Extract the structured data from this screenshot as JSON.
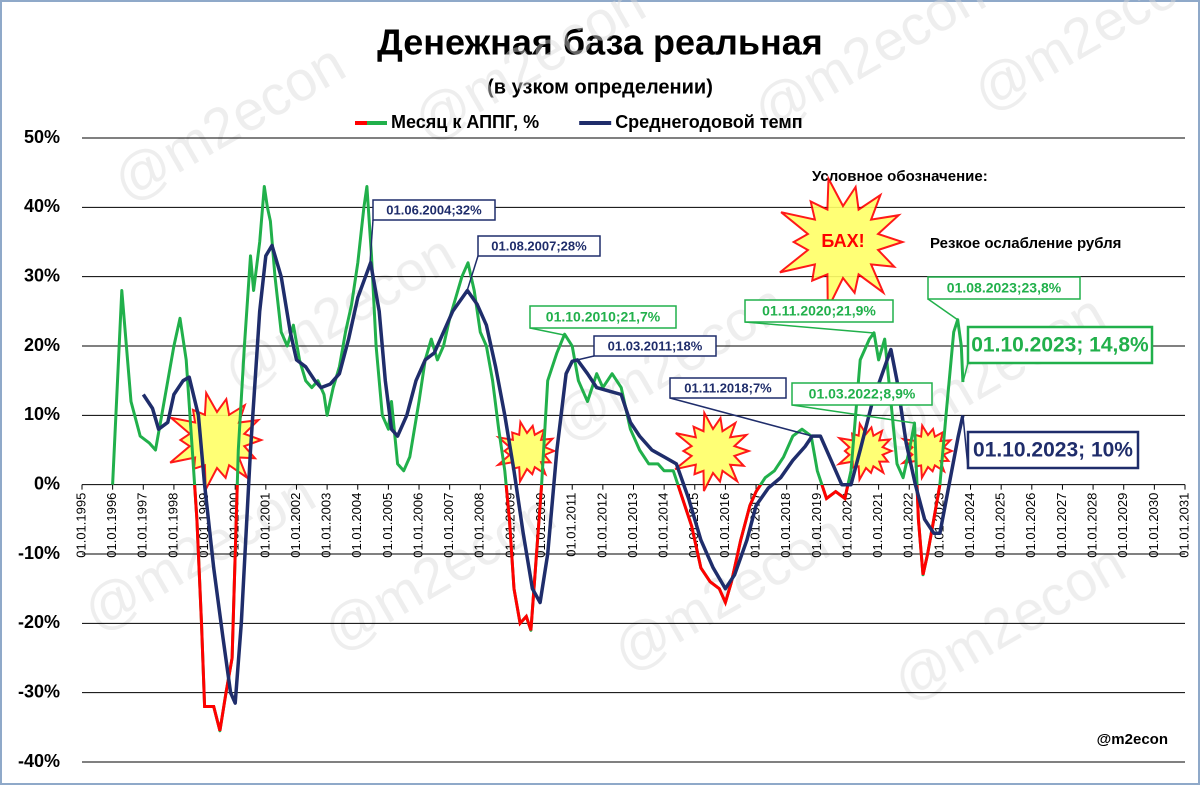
{
  "chart_data": {
    "type": "line",
    "title": "Денежная база реальная",
    "subtitle": "(в узком определении)",
    "xlim": [
      1995,
      2031
    ],
    "xticks": [
      {
        "value": 1995,
        "label": "01.01.1995"
      },
      {
        "value": 1996,
        "label": "01.01.1996"
      },
      {
        "value": 1997,
        "label": "01.01.1997"
      },
      {
        "value": 1998,
        "label": "01.01.1998"
      },
      {
        "value": 1999,
        "label": "01.01.1999"
      },
      {
        "value": 2000,
        "label": "01.01.2000"
      },
      {
        "value": 2001,
        "label": "01.01.2001"
      },
      {
        "value": 2002,
        "label": "01.01.2002"
      },
      {
        "value": 2003,
        "label": "01.01.2003"
      },
      {
        "value": 2004,
        "label": "01.01.2004"
      },
      {
        "value": 2005,
        "label": "01.01.2005"
      },
      {
        "value": 2006,
        "label": "01.01.2006"
      },
      {
        "value": 2007,
        "label": "01.01.2007"
      },
      {
        "value": 2008,
        "label": "01.01.2008"
      },
      {
        "value": 2009,
        "label": "01.01.2009"
      },
      {
        "value": 2010,
        "label": "01.01.2010"
      },
      {
        "value": 2011,
        "label": "01.01.2011"
      },
      {
        "value": 2012,
        "label": "01.01.2012"
      },
      {
        "value": 2013,
        "label": "01.01.2013"
      },
      {
        "value": 2014,
        "label": "01.01.2014"
      },
      {
        "value": 2015,
        "label": "01.01.2015"
      },
      {
        "value": 2016,
        "label": "01.01.2016"
      },
      {
        "value": 2017,
        "label": "01.01.2017"
      },
      {
        "value": 2018,
        "label": "01.01.2018"
      },
      {
        "value": 2019,
        "label": "01.01.2019"
      },
      {
        "value": 2020,
        "label": "01.01.2020"
      },
      {
        "value": 2021,
        "label": "01.01.2021"
      },
      {
        "value": 2022,
        "label": "01.01.2022"
      },
      {
        "value": 2023,
        "label": "01.01.2023"
      },
      {
        "value": 2024,
        "label": "01.01.2024"
      },
      {
        "value": 2025,
        "label": "01.01.2025"
      },
      {
        "value": 2026,
        "label": "01.01.2026"
      },
      {
        "value": 2027,
        "label": "01.01.2027"
      },
      {
        "value": 2028,
        "label": "01.01.2028"
      },
      {
        "value": 2029,
        "label": "01.01.2029"
      },
      {
        "value": 2030,
        "label": "01.01.2030"
      },
      {
        "value": 2031,
        "label": "01.01.2031"
      }
    ],
    "ylim": [
      -40,
      50
    ],
    "yticks": [
      {
        "value": -40,
        "label": "-40%"
      },
      {
        "value": -30,
        "label": "-30%"
      },
      {
        "value": -20,
        "label": "-20%"
      },
      {
        "value": -10,
        "label": "-10%"
      },
      {
        "value": 0,
        "label": "0%"
      },
      {
        "value": 10,
        "label": "10%"
      },
      {
        "value": 20,
        "label": "20%"
      },
      {
        "value": 30,
        "label": "30%"
      },
      {
        "value": 40,
        "label": "40%"
      },
      {
        "value": 50,
        "label": "50%"
      }
    ],
    "grid": true,
    "series": [
      {
        "name": "Месяц к АППГ, %",
        "color": "#21b04b",
        "negative_color": "#ff0000",
        "x": [
          1996.0,
          1996.3,
          1996.6,
          1996.9,
          1997.2,
          1997.4,
          1997.6,
          1997.8,
          1998.0,
          1998.2,
          1998.4,
          1998.6,
          1998.75,
          1998.9,
          1999.0,
          1999.3,
          1999.5,
          1999.7,
          1999.9,
          2000.0,
          2000.1,
          2000.3,
          2000.5,
          2000.6,
          2000.8,
          2000.95,
          2001.05,
          2001.15,
          2001.3,
          2001.5,
          2001.7,
          2001.9,
          2002.1,
          2002.3,
          2002.5,
          2002.7,
          2002.9,
          2003.0,
          2003.2,
          2003.4,
          2003.6,
          2003.8,
          2004.0,
          2004.2,
          2004.3,
          2004.45,
          2004.6,
          2004.8,
          2005.0,
          2005.1,
          2005.3,
          2005.5,
          2005.7,
          2006.0,
          2006.2,
          2006.4,
          2006.6,
          2006.8,
          2007.0,
          2007.2,
          2007.4,
          2007.6,
          2007.8,
          2008.0,
          2008.2,
          2008.4,
          2008.6,
          2008.8,
          2008.95,
          2009.1,
          2009.3,
          2009.5,
          2009.65,
          2009.8,
          2010.0,
          2010.2,
          2010.5,
          2010.75,
          2011.0,
          2011.2,
          2011.5,
          2011.8,
          2012.0,
          2012.3,
          2012.6,
          2012.9,
          2013.2,
          2013.5,
          2013.8,
          2014.0,
          2014.3,
          2014.6,
          2014.9,
          2015.2,
          2015.5,
          2015.8,
          2016.0,
          2016.2,
          2016.5,
          2016.8,
          2017.0,
          2017.3,
          2017.6,
          2017.9,
          2018.2,
          2018.5,
          2018.8,
          2019.0,
          2019.3,
          2019.6,
          2019.9,
          2020.1,
          2020.4,
          2020.7,
          2020.85,
          2021.0,
          2021.2,
          2021.4,
          2021.6,
          2021.8,
          2022.0,
          2022.17,
          2022.3,
          2022.45,
          2022.6,
          2022.8,
          2023.0,
          2023.2,
          2023.45,
          2023.58,
          2023.7,
          2023.75
        ],
        "values": [
          0,
          28,
          12,
          7,
          6,
          5,
          10,
          15,
          20,
          24,
          18,
          5,
          -5,
          -20,
          -32,
          -32,
          -35.5,
          -30,
          -25,
          -10,
          5,
          20,
          33,
          28,
          35,
          43,
          40,
          38,
          30,
          22,
          20,
          23,
          18,
          15,
          14,
          15,
          13,
          10,
          14,
          17,
          22,
          26,
          32,
          40,
          43,
          33,
          20,
          10,
          8,
          12,
          3,
          2,
          4,
          12,
          18,
          21,
          18,
          20,
          24,
          27,
          30,
          32,
          28,
          22,
          20,
          15,
          8,
          2,
          -5,
          -15,
          -20,
          -19,
          -21,
          -12,
          0,
          15,
          19,
          21.7,
          20,
          15,
          12,
          16,
          14,
          16,
          14,
          8,
          5,
          3,
          3,
          2,
          2,
          -2,
          -6,
          -12,
          -14,
          -15,
          -17,
          -14,
          -8,
          -3,
          -1,
          1,
          2,
          4,
          7,
          8,
          7,
          2,
          -2,
          -1,
          -2,
          2,
          18,
          21,
          21.9,
          18,
          21,
          12,
          3,
          1,
          5,
          8.9,
          -5,
          -13,
          -10,
          -5,
          0,
          10,
          22,
          23.8,
          20,
          14.8
        ]
      },
      {
        "name": "Среднегодовой темп",
        "color": "#1f2d6b",
        "x": [
          1997.0,
          1997.3,
          1997.5,
          1997.8,
          1998.0,
          1998.3,
          1998.5,
          1998.8,
          1999.0,
          1999.3,
          1999.6,
          1999.85,
          2000.0,
          2000.2,
          2000.5,
          2000.8,
          2001.0,
          2001.2,
          2001.5,
          2001.8,
          2002.0,
          2002.3,
          2002.6,
          2002.8,
          2003.1,
          2003.4,
          2003.7,
          2004.0,
          2004.42,
          2004.7,
          2004.9,
          2005.1,
          2005.3,
          2005.6,
          2005.9,
          2006.2,
          2006.5,
          2006.8,
          2007.1,
          2007.58,
          2007.9,
          2008.2,
          2008.5,
          2008.8,
          2009.1,
          2009.4,
          2009.7,
          2009.95,
          2010.2,
          2010.5,
          2010.8,
          2011.0,
          2011.17,
          2011.5,
          2011.8,
          2012.2,
          2012.6,
          2012.9,
          2013.2,
          2013.6,
          2014.0,
          2014.4,
          2014.8,
          2015.2,
          2015.6,
          2016.0,
          2016.3,
          2016.7,
          2017.0,
          2017.4,
          2017.8,
          2018.2,
          2018.6,
          2018.83,
          2019.1,
          2019.4,
          2019.8,
          2020.1,
          2020.4,
          2020.8,
          2021.2,
          2021.4,
          2021.6,
          2021.9,
          2022.2,
          2022.5,
          2022.8,
          2023.0,
          2023.3,
          2023.6,
          2023.75
        ],
        "values": [
          13,
          11,
          8,
          9,
          13,
          15,
          15.5,
          10,
          0,
          -12,
          -22,
          -30,
          -31.5,
          -20,
          5,
          25,
          33,
          34.5,
          30,
          22,
          18,
          17,
          15,
          14,
          14.5,
          16,
          21,
          27,
          32,
          25,
          15,
          8,
          7,
          10,
          15,
          18,
          19,
          22,
          25,
          28,
          26,
          23,
          17,
          10,
          2,
          -7,
          -15,
          -17,
          -10,
          5,
          16,
          17.8,
          18,
          16,
          14,
          13.5,
          13,
          9,
          7,
          5,
          4,
          3,
          -2,
          -8,
          -12,
          -15,
          -13,
          -8,
          -3,
          -0.5,
          1,
          3.5,
          5.5,
          7,
          7,
          4,
          0,
          0,
          5,
          12,
          17,
          19.5,
          15,
          6,
          0,
          -5,
          -7,
          -7,
          0,
          7,
          10
        ]
      }
    ],
    "annotations": [
      "01.06.2004;32%",
      "01.08.2007;28%",
      "01.10.2010;21,7%",
      "01.03.2011;18%",
      "01.11.2018;7%",
      "01.11.2020;21,9%",
      "01.03.2022;8,9%",
      "01.08.2023;23,8%",
      "01.10.2023; 14,8%",
      "01.10.2023; 10%"
    ],
    "legend_note": {
      "title": "Условное обозначение:",
      "symbol": "БАХ!",
      "text": "Резкое ослабление рубля"
    },
    "credit": "@m2econ"
  }
}
